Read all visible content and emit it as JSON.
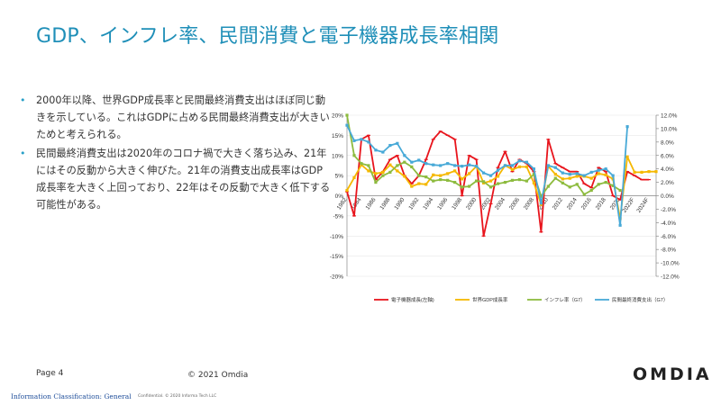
{
  "slide": {
    "title": "GDP、インフレ率、民間消費と電子機器成長率相関",
    "bullets": [
      "2000年以降、世界GDP成長率と民間最終消費支出はほぼ同じ動きを示している。これはGDPに占める民間最終消費支出が大きいためと考えられる。",
      "民間最終消費支出は2020年のコロナ禍で大きく落ち込み、21年にはその反動から大きく伸びた。21年の消費支出成長率はGDP成長率を大きく上回っており、22年はその反動で大きく低下する可能性がある。"
    ],
    "bullet_icon": "•",
    "page": "Page 4",
    "copyright": "© 2021 Omdia",
    "logo": "OMDIA",
    "classification": "Information Classification: General",
    "confidential": "Confidential. © 2020 Informa Tech LLC"
  },
  "chart_data": {
    "type": "line",
    "x": [
      "1982",
      "1983",
      "1984",
      "1985",
      "1986",
      "1987",
      "1988",
      "1989",
      "1990",
      "1991",
      "1992",
      "1993",
      "1994",
      "1995",
      "1996",
      "1997",
      "1998",
      "1999",
      "2000",
      "2001",
      "2002",
      "2003",
      "2004",
      "2005",
      "2006",
      "2007",
      "2008",
      "2009",
      "2010",
      "2011",
      "2012",
      "2013",
      "2014",
      "2015",
      "2016",
      "2017",
      "2018",
      "2019",
      "2020",
      "2021",
      "2022F",
      "2023F",
      "2024F",
      "2025F"
    ],
    "x_tick_labels": [
      "1982",
      "1984",
      "1986",
      "1988",
      "1990",
      "1992",
      "1994",
      "1996",
      "1998",
      "2000",
      "2002",
      "2004",
      "2006",
      "2008",
      "2010",
      "2012",
      "2014",
      "2016",
      "2018",
      "2020",
      "2022F",
      "2024F"
    ],
    "y_left": {
      "min": -20,
      "max": 20,
      "ticks": [
        "20%",
        "15%",
        "10%",
        "5%",
        "0%",
        "-5%",
        "-10%",
        "-15%",
        "-20%"
      ]
    },
    "y_right": {
      "min": -12,
      "max": 12,
      "ticks": [
        "12.0%",
        "10.0%",
        "8.0%",
        "6.0%",
        "4.0%",
        "2.0%",
        "0.0%",
        "-2.0%",
        "-4.0%",
        "-6.0%",
        "-8.0%",
        "-10.0%",
        "-12.0%"
      ]
    },
    "grid": true,
    "legend_position": "bottom",
    "series": [
      {
        "name": "電子機器成長(左軸)",
        "axis": "left",
        "color": "#e8141c",
        "values": [
          1,
          -5,
          14,
          15,
          4,
          6,
          9,
          10,
          5,
          3,
          5,
          9,
          14,
          16,
          15,
          14,
          0,
          10,
          9,
          -10,
          -2,
          7,
          11,
          6,
          9,
          8,
          6,
          -9,
          14,
          8,
          7,
          6,
          6,
          3,
          2,
          7,
          6,
          0,
          -1,
          6,
          5,
          4,
          4,
          null
        ]
      },
      {
        "name": "世界GDP成長率",
        "axis": "right",
        "color": "#f5b800",
        "values": [
          0.8,
          2.7,
          4.6,
          3.7,
          3.3,
          3.5,
          4.6,
          3.7,
          2.9,
          1.4,
          1.8,
          1.7,
          3.1,
          3.0,
          3.3,
          3.7,
          2.5,
          3.3,
          4.4,
          1.9,
          2.2,
          2.9,
          4.5,
          3.9,
          4.3,
          4.3,
          1.9,
          -1.3,
          4.4,
          3.2,
          2.5,
          2.6,
          2.9,
          2.9,
          2.6,
          3.3,
          3.1,
          2.5,
          -3.4,
          5.8,
          3.5,
          3.5,
          3.6,
          3.6
        ]
      },
      {
        "name": "インフレ率（G7）",
        "axis": "right",
        "color": "#8dbb3e",
        "values": [
          12.0,
          6.0,
          4.8,
          4.5,
          2.0,
          3.0,
          3.5,
          4.5,
          5.0,
          4.3,
          3.0,
          2.8,
          2.2,
          2.4,
          2.3,
          2.0,
          1.3,
          1.4,
          2.2,
          2.1,
          1.3,
          1.8,
          2.0,
          2.3,
          2.4,
          2.2,
          3.2,
          -0.1,
          1.4,
          2.6,
          1.9,
          1.3,
          1.7,
          0.2,
          0.8,
          1.7,
          2.0,
          1.5,
          0.8,
          null,
          null,
          null,
          null,
          null
        ]
      },
      {
        "name": "民間最終消費支出（G7）",
        "axis": "right",
        "color": "#47a9d7",
        "values": [
          10.5,
          8.2,
          8.4,
          8.0,
          6.8,
          6.5,
          7.5,
          7.8,
          6.0,
          5.0,
          5.3,
          4.8,
          4.6,
          4.5,
          4.8,
          4.5,
          4.4,
          4.6,
          4.4,
          3.4,
          3.0,
          3.8,
          4.5,
          4.5,
          5.2,
          5.0,
          4.0,
          -1.1,
          4.5,
          4.2,
          3.4,
          3.2,
          3.3,
          3.0,
          3.5,
          3.8,
          4.0,
          3.0,
          -4.4,
          10.3,
          null,
          null,
          null,
          null
        ]
      }
    ]
  }
}
